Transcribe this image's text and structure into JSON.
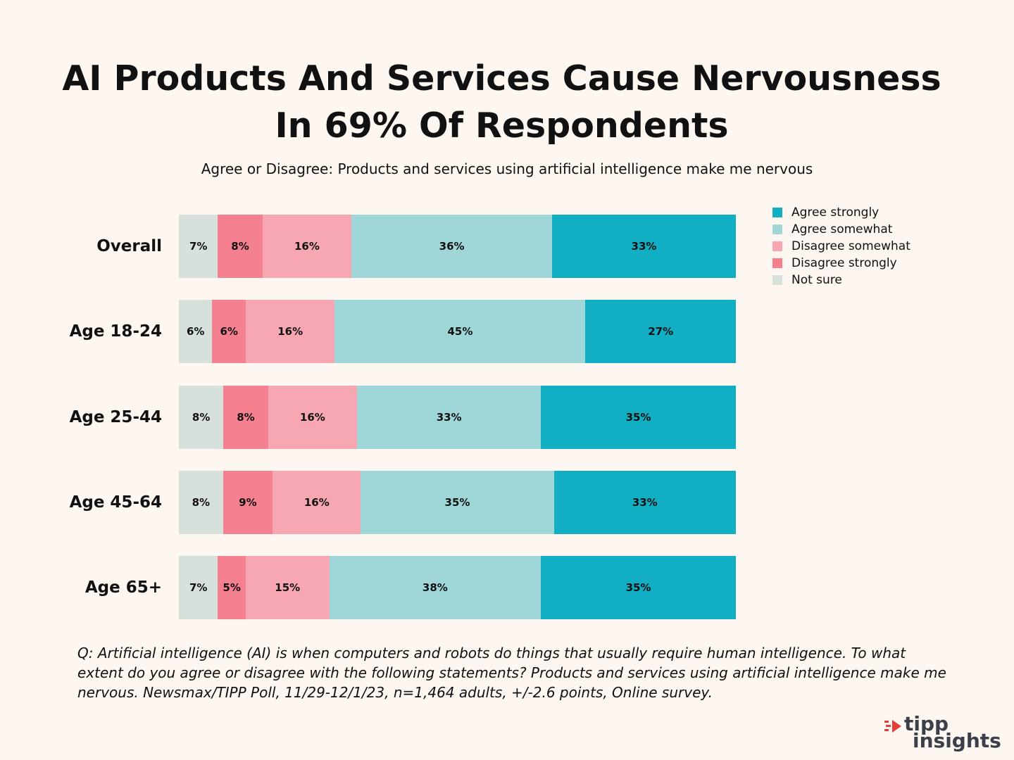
{
  "title": "AI Products And Services Cause Nervousness In 69% Of Respondents",
  "subtitle": "Agree or Disagree: Products and services using artificial intelligence make me nervous",
  "note": "Q: Artificial intelligence (AI) is when computers and robots do things that usually require human intelligence. To what extent do you agree or disagree with the following statements? Products and services using artificial intelligence make me nervous. Newsmax/TIPP Poll, 11/29-12/1/23, n=1,464 adults, +/-2.6 points, Online survey.",
  "logo": {
    "line1": "tipp",
    "line2": "insights"
  },
  "colors": {
    "agree_strongly": "#11aec4",
    "agree_somewhat": "#9fd7d8",
    "disagree_somewhat": "#f6a7b1",
    "disagree_strongly": "#f5808f",
    "not_sure": "#d6e1dc",
    "logo_red": "#e63b3b"
  },
  "chart_data": {
    "type": "bar",
    "orientation": "horizontal",
    "stacked": true,
    "normalized": true,
    "title": "AI Products And Services Cause Nervousness In 69% Of Respondents",
    "subtitle": "Agree or Disagree: Products and services using artificial intelligence make me nervous",
    "categories": [
      "Overall",
      "Age 18-24",
      "Age 25-44",
      "Age 45-64",
      "Age 65+"
    ],
    "series": [
      {
        "name": "Not sure",
        "key": "not_sure",
        "values": [
          7,
          6,
          8,
          8,
          7
        ],
        "labels": [
          "7%",
          "6%",
          "8%",
          "8%",
          "7%"
        ]
      },
      {
        "name": "Disagree strongly",
        "key": "disagree_strongly",
        "values": [
          8,
          6,
          8,
          9,
          5
        ],
        "labels": [
          "8%",
          "6%",
          "8%",
          "9%",
          "5%"
        ]
      },
      {
        "name": "Disagree somewhat",
        "key": "disagree_somewhat",
        "values": [
          16,
          16,
          16,
          16,
          15
        ],
        "labels": [
          "16%",
          "16%",
          "16%",
          "16%",
          "15%"
        ]
      },
      {
        "name": "Agree somewhat",
        "key": "agree_somewhat",
        "values": [
          36,
          45,
          33,
          35,
          38
        ],
        "labels": [
          "36%",
          "45%",
          "33%",
          "35%",
          "38%"
        ]
      },
      {
        "name": "Agree strongly",
        "key": "agree_strongly",
        "values": [
          33,
          27,
          35,
          33,
          35
        ],
        "labels": [
          "33%",
          "27%",
          "35%",
          "33%",
          "35%"
        ]
      }
    ],
    "legend": {
      "position": "top-right",
      "order": [
        "Agree strongly",
        "Agree somewhat",
        "Disagree somewhat",
        "Disagree strongly",
        "Not sure"
      ]
    },
    "xlabel": "",
    "ylabel": "",
    "grid": false
  }
}
